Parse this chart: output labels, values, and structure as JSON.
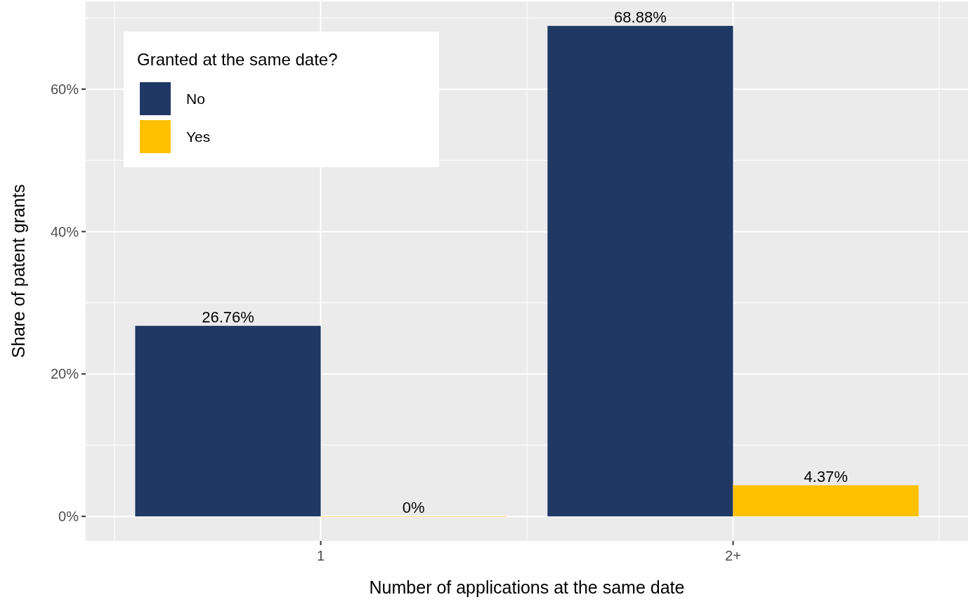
{
  "chart_data": {
    "type": "bar",
    "xlabel": "Number of applications at the same date",
    "ylabel": "Share of patent grants",
    "legend_title": "Granted at the same date?",
    "categories": [
      "1",
      "2+"
    ],
    "series": [
      {
        "name": "No",
        "color": "#203864",
        "values": [
          26.76,
          68.88
        ],
        "value_labels": [
          "26.76%",
          "68.88%"
        ]
      },
      {
        "name": "Yes",
        "color": "#ffc000",
        "values": [
          0,
          4.37
        ],
        "value_labels": [
          "0%",
          "4.37%"
        ]
      }
    ],
    "ylim": [
      -3.44,
      72.32
    ],
    "yticks": [
      {
        "value": 0,
        "label": "0%"
      },
      {
        "value": 20,
        "label": "20%"
      },
      {
        "value": 40,
        "label": "40%"
      },
      {
        "value": 60,
        "label": "60%"
      }
    ],
    "grid": true,
    "legend": "top left"
  }
}
